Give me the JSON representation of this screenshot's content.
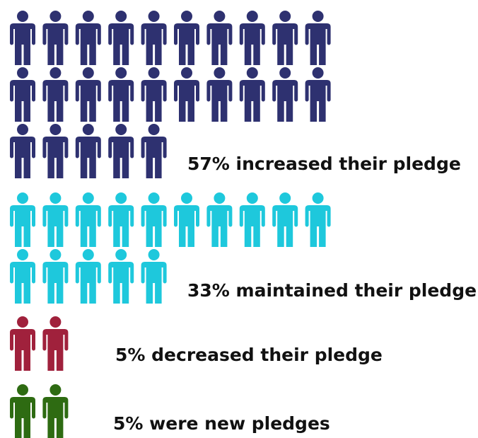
{
  "chart_data": {
    "type": "pictograph",
    "categories": [
      "57% increased their pledge",
      "33% maintained their pledge",
      "5% decreased their pledge",
      "5% were new pledges"
    ],
    "values": [
      57,
      33,
      5,
      5
    ],
    "icon_counts": [
      25,
      15,
      2,
      2
    ],
    "colors": [
      "#2e3170",
      "#1ec8dc",
      "#a0213c",
      "#2e6b12"
    ]
  }
}
